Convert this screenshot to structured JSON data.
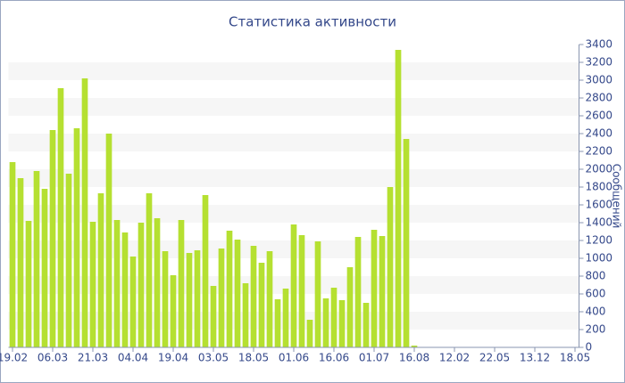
{
  "chart_data": {
    "type": "bar",
    "title": "Статистика активности",
    "y_label": "Сообщений",
    "categories": [
      "19.02",
      null,
      null,
      null,
      null,
      "06.03",
      null,
      null,
      null,
      null,
      "21.03",
      null,
      null,
      null,
      null,
      "04.04",
      null,
      null,
      null,
      null,
      "19.04",
      null,
      null,
      null,
      null,
      "03.05",
      null,
      null,
      null,
      null,
      "18.05",
      null,
      null,
      null,
      null,
      "01.06",
      null,
      null,
      null,
      null,
      "16.06",
      null,
      null,
      null,
      null,
      "01.07",
      null,
      null,
      null,
      null,
      "16.08",
      null,
      null,
      null,
      null,
      "12.02",
      null,
      null,
      null,
      null,
      "22.05",
      null,
      null,
      null,
      null,
      "13.12",
      null,
      null,
      null,
      null,
      "18.05"
    ],
    "values": [
      2080,
      1900,
      1420,
      1980,
      1780,
      2440,
      2910,
      1950,
      2460,
      3020,
      1410,
      1730,
      2400,
      1430,
      1290,
      1020,
      1400,
      1730,
      1450,
      1080,
      810,
      1430,
      1060,
      1090,
      1710,
      690,
      1110,
      1310,
      1210,
      720,
      1140,
      950,
      1080,
      540,
      660,
      1380,
      1260,
      310,
      1190,
      550,
      670,
      530,
      900,
      1240,
      500,
      1320,
      1250,
      1800,
      3340,
      2340,
      20,
      5,
      5,
      5,
      5,
      5,
      5,
      5,
      5,
      5,
      5,
      5,
      5,
      5,
      5,
      5,
      5,
      5,
      5,
      5,
      5
    ],
    "color": "#b5e031",
    "ylim": [
      0,
      3400
    ],
    "yticks": [
      0,
      200,
      400,
      600,
      800,
      1000,
      1200,
      1400,
      1600,
      1800,
      2000,
      2200,
      2400,
      2600,
      2800,
      3000,
      3200,
      3400
    ],
    "grid": true,
    "y_axis_side": "right"
  }
}
